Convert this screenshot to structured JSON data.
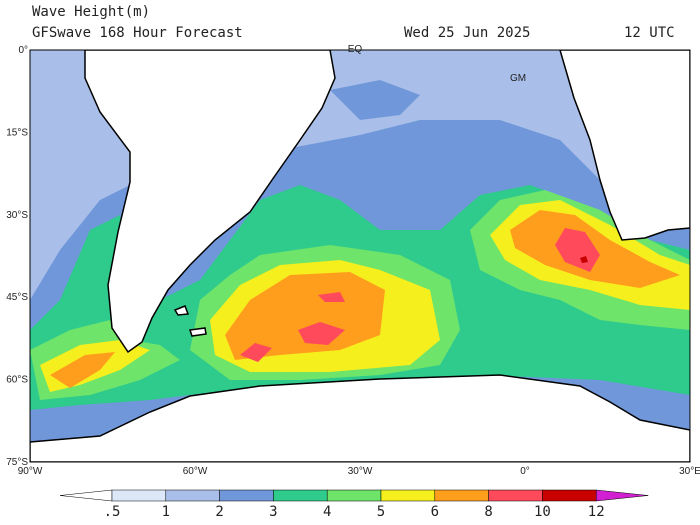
{
  "header": {
    "title": "Wave Height(m)",
    "subtitle": "GFSwave 168 Hour Forecast",
    "date": "Wed 25 Jun 2025",
    "time": "12 UTC"
  },
  "map": {
    "lat_labels": [
      "0°",
      "15°S",
      "30°S",
      "45°S",
      "60°S",
      "75°S"
    ],
    "lon_labels": [
      "90°W",
      "60°W",
      "30°W",
      "0°",
      "30°E"
    ],
    "markers": [
      "EQ",
      "GM"
    ]
  },
  "colorbar": {
    "labels": [
      ".5",
      "1",
      "2",
      "3",
      "4",
      "5",
      "6",
      "8",
      "10",
      "12"
    ],
    "colors": [
      "#ffffff",
      "#dce8f8",
      "#a9bfe9",
      "#6f97d9",
      "#2fcb8c",
      "#6ee46a",
      "#f6ef1e",
      "#ff9d1c",
      "#ff4a5c",
      "#c80000",
      "#d21fd2"
    ]
  }
}
